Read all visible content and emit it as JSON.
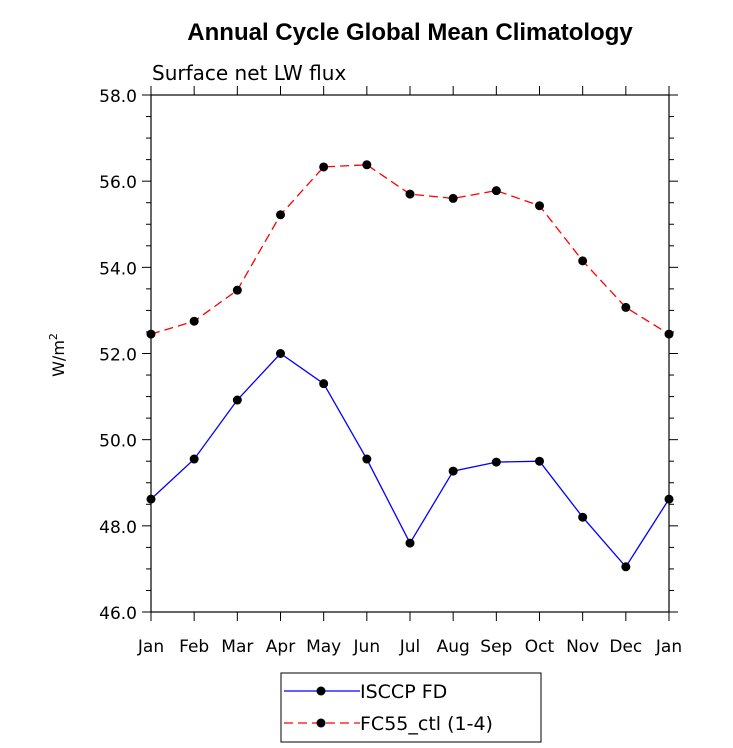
{
  "chart_data": {
    "type": "line",
    "title": "Annual Cycle Global Mean Climatology",
    "subtitle": "Surface net LW flux",
    "ylabel": "W/m",
    "ylabel_sup": "2",
    "ylim": [
      46.0,
      58.0
    ],
    "yticks": [
      "46.0",
      "48.0",
      "50.0",
      "52.0",
      "54.0",
      "56.0",
      "58.0"
    ],
    "categories": [
      "Jan",
      "Feb",
      "Mar",
      "Apr",
      "May",
      "Jun",
      "Jul",
      "Aug",
      "Sep",
      "Oct",
      "Nov",
      "Dec",
      "Jan"
    ],
    "series": [
      {
        "name": "ISCCP FD",
        "color": "#0000ff",
        "dash": "solid",
        "values": [
          48.62,
          49.55,
          50.92,
          52.0,
          51.3,
          49.55,
          47.6,
          49.27,
          49.48,
          49.5,
          48.2,
          47.05,
          48.62
        ]
      },
      {
        "name": "FC55_ctl (1-4)",
        "color": "#ff0000",
        "dash": "dashed",
        "values": [
          52.45,
          52.75,
          53.47,
          55.22,
          56.33,
          56.38,
          55.7,
          55.6,
          55.78,
          55.43,
          54.15,
          53.07,
          52.45
        ]
      }
    ],
    "grid": false,
    "legend_position": "bottom"
  }
}
